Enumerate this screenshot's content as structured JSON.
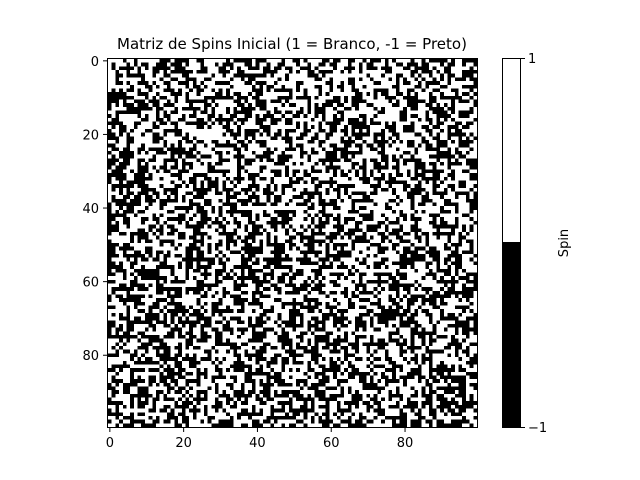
{
  "chart_data": {
    "type": "heatmap",
    "title": "Matriz de Spins Inicial (1 = Branco, -1 = Preto)",
    "grid_size": [
      100,
      100
    ],
    "values_description_source": "random",
    "xticks": [
      0,
      20,
      40,
      60,
      80
    ],
    "yticks": [
      0,
      20,
      40,
      60,
      80
    ],
    "colormap": {
      "1": "#ffffff",
      "-1": "#000000"
    },
    "colorbar": {
      "label": "Spin",
      "ticks": [
        1,
        -1
      ],
      "tick_labels": [
        "1",
        "−1"
      ]
    },
    "grid": false
  }
}
